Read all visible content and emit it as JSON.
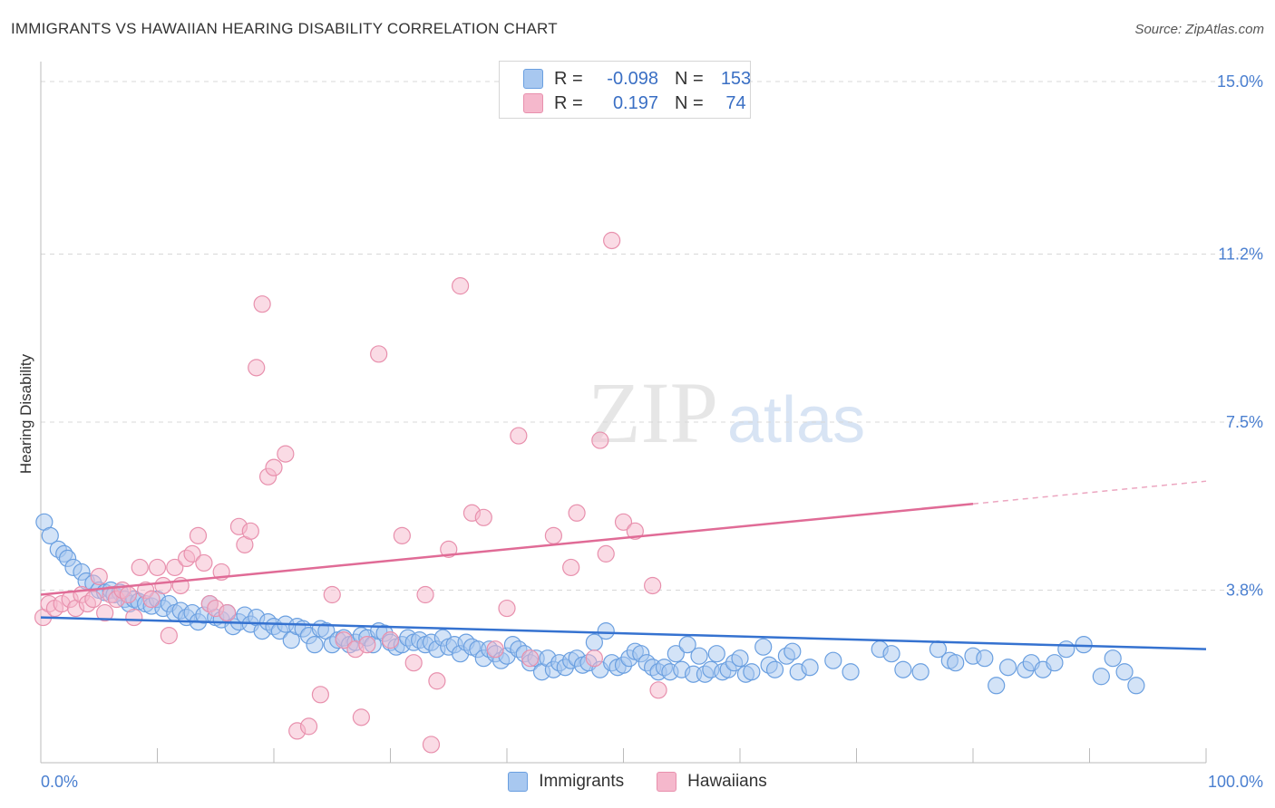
{
  "title": "IMMIGRANTS VS HAWAIIAN HEARING DISABILITY CORRELATION CHART",
  "source": "Source: ZipAtlas.com",
  "watermark": {
    "zip": "ZIP",
    "atlas": "atlas"
  },
  "colors": {
    "blue_fill": "#a8c8f0",
    "blue_stroke": "#6a9fe0",
    "blue_line": "#3572d0",
    "pink_fill": "#f5b8cc",
    "pink_stroke": "#e890ad",
    "pink_line": "#e06b96",
    "tick_text": "#4a7fd0",
    "grid": "#d8d8d8"
  },
  "legend": {
    "rows": [
      {
        "r_label": "R =",
        "r_value": "-0.098",
        "n_label": "N =",
        "n_value": "153",
        "color": "#a8c8f0",
        "border": "#6a9fe0"
      },
      {
        "r_label": "R =",
        "r_value": "0.197",
        "n_label": "N =",
        "n_value": "74",
        "color": "#f5b8cc",
        "border": "#e890ad"
      }
    ]
  },
  "bottom_legend": [
    "Immigrants",
    "Hawaiians"
  ],
  "chart_data": {
    "type": "scatter",
    "title": "IMMIGRANTS VS HAWAIIAN HEARING DISABILITY CORRELATION CHART",
    "xlabel": "",
    "ylabel": "Hearing Disability",
    "xlim": [
      0,
      100
    ],
    "ylim": [
      0,
      15.3
    ],
    "x_tick_labels": [
      "0.0%",
      "100.0%"
    ],
    "y_ticks": [
      3.8,
      7.5,
      11.2,
      15.0
    ],
    "y_tick_labels": [
      "3.8%",
      "7.5%",
      "11.2%",
      "15.0%"
    ],
    "grid": "horizontal dashed",
    "legend_position": "top-center",
    "series": [
      {
        "name": "Immigrants",
        "trend": {
          "x": [
            0,
            100
          ],
          "y": [
            3.2,
            2.5
          ]
        },
        "points": [
          [
            0.3,
            5.3
          ],
          [
            0.8,
            5.0
          ],
          [
            1.5,
            4.7
          ],
          [
            2.0,
            4.6
          ],
          [
            2.3,
            4.5
          ],
          [
            2.8,
            4.3
          ],
          [
            3.5,
            4.2
          ],
          [
            3.9,
            4.0
          ],
          [
            4.5,
            3.95
          ],
          [
            5.0,
            3.8
          ],
          [
            5.5,
            3.75
          ],
          [
            6.0,
            3.8
          ],
          [
            6.3,
            3.7
          ],
          [
            6.8,
            3.75
          ],
          [
            7.2,
            3.6
          ],
          [
            7.6,
            3.5
          ],
          [
            8.0,
            3.6
          ],
          [
            8.4,
            3.55
          ],
          [
            9.0,
            3.5
          ],
          [
            9.5,
            3.45
          ],
          [
            10.0,
            3.6
          ],
          [
            10.5,
            3.4
          ],
          [
            11.0,
            3.5
          ],
          [
            11.5,
            3.3
          ],
          [
            12.0,
            3.35
          ],
          [
            12.5,
            3.2
          ],
          [
            13.0,
            3.3
          ],
          [
            13.5,
            3.1
          ],
          [
            14.0,
            3.25
          ],
          [
            14.5,
            3.5
          ],
          [
            15.0,
            3.2
          ],
          [
            15.5,
            3.15
          ],
          [
            16.0,
            3.3
          ],
          [
            16.5,
            3.0
          ],
          [
            17.0,
            3.1
          ],
          [
            17.5,
            3.25
          ],
          [
            18.0,
            3.05
          ],
          [
            18.5,
            3.2
          ],
          [
            19.0,
            2.9
          ],
          [
            19.5,
            3.1
          ],
          [
            20.0,
            3.0
          ],
          [
            20.5,
            2.9
          ],
          [
            21.0,
            3.05
          ],
          [
            21.5,
            2.7
          ],
          [
            22.0,
            3.0
          ],
          [
            22.5,
            2.95
          ],
          [
            23.0,
            2.8
          ],
          [
            23.5,
            2.6
          ],
          [
            24.0,
            2.95
          ],
          [
            24.5,
            2.9
          ],
          [
            25.0,
            2.6
          ],
          [
            25.5,
            2.7
          ],
          [
            26.0,
            2.75
          ],
          [
            26.5,
            2.6
          ],
          [
            27.0,
            2.65
          ],
          [
            27.5,
            2.8
          ],
          [
            28.0,
            2.75
          ],
          [
            28.5,
            2.6
          ],
          [
            29.0,
            2.9
          ],
          [
            29.5,
            2.85
          ],
          [
            30.0,
            2.65
          ],
          [
            30.5,
            2.55
          ],
          [
            31.0,
            2.6
          ],
          [
            31.5,
            2.75
          ],
          [
            32.0,
            2.65
          ],
          [
            32.5,
            2.7
          ],
          [
            33.0,
            2.6
          ],
          [
            33.5,
            2.65
          ],
          [
            34.0,
            2.5
          ],
          [
            34.5,
            2.75
          ],
          [
            35.0,
            2.55
          ],
          [
            35.5,
            2.6
          ],
          [
            36.0,
            2.4
          ],
          [
            36.5,
            2.65
          ],
          [
            37.0,
            2.55
          ],
          [
            37.5,
            2.5
          ],
          [
            38.0,
            2.3
          ],
          [
            38.5,
            2.5
          ],
          [
            39.0,
            2.4
          ],
          [
            39.5,
            2.25
          ],
          [
            40.0,
            2.35
          ],
          [
            40.5,
            2.6
          ],
          [
            41.0,
            2.5
          ],
          [
            41.5,
            2.4
          ],
          [
            42.0,
            2.2
          ],
          [
            42.5,
            2.3
          ],
          [
            43.0,
            2.0
          ],
          [
            43.5,
            2.3
          ],
          [
            44.0,
            2.05
          ],
          [
            44.5,
            2.2
          ],
          [
            45.0,
            2.1
          ],
          [
            45.5,
            2.25
          ],
          [
            46.0,
            2.3
          ],
          [
            46.5,
            2.15
          ],
          [
            47.0,
            2.2
          ],
          [
            47.5,
            2.65
          ],
          [
            48.0,
            2.05
          ],
          [
            48.5,
            2.9
          ],
          [
            49.0,
            2.2
          ],
          [
            49.5,
            2.1
          ],
          [
            50.0,
            2.15
          ],
          [
            50.5,
            2.3
          ],
          [
            51.0,
            2.45
          ],
          [
            51.5,
            2.4
          ],
          [
            52.0,
            2.2
          ],
          [
            52.5,
            2.1
          ],
          [
            53.0,
            2.0
          ],
          [
            53.5,
            2.1
          ],
          [
            54.0,
            2.0
          ],
          [
            54.5,
            2.4
          ],
          [
            55.0,
            2.05
          ],
          [
            55.5,
            2.6
          ],
          [
            56.0,
            1.95
          ],
          [
            56.5,
            2.35
          ],
          [
            57.0,
            1.95
          ],
          [
            57.5,
            2.05
          ],
          [
            58.0,
            2.4
          ],
          [
            58.5,
            2.0
          ],
          [
            59.0,
            2.05
          ],
          [
            59.5,
            2.2
          ],
          [
            60.0,
            2.3
          ],
          [
            60.5,
            1.95
          ],
          [
            61.0,
            2.0
          ],
          [
            62.0,
            2.55
          ],
          [
            62.5,
            2.15
          ],
          [
            63.0,
            2.05
          ],
          [
            64.0,
            2.35
          ],
          [
            64.5,
            2.45
          ],
          [
            65.0,
            2.0
          ],
          [
            66.0,
            2.1
          ],
          [
            68.0,
            2.25
          ],
          [
            69.5,
            2.0
          ],
          [
            72.0,
            2.5
          ],
          [
            73.0,
            2.4
          ],
          [
            74.0,
            2.05
          ],
          [
            75.5,
            2.0
          ],
          [
            77.0,
            2.5
          ],
          [
            78.0,
            2.25
          ],
          [
            78.5,
            2.2
          ],
          [
            80.0,
            2.35
          ],
          [
            81.0,
            2.3
          ],
          [
            82.0,
            1.7
          ],
          [
            83.0,
            2.1
          ],
          [
            84.5,
            2.05
          ],
          [
            85.0,
            2.2
          ],
          [
            86.0,
            2.05
          ],
          [
            87.0,
            2.2
          ],
          [
            88.0,
            2.5
          ],
          [
            89.5,
            2.6
          ],
          [
            91.0,
            1.9
          ],
          [
            92.0,
            2.3
          ],
          [
            93.0,
            2.0
          ],
          [
            94.0,
            1.7
          ]
        ]
      },
      {
        "name": "Hawaiians",
        "trend": {
          "x": [
            0,
            80
          ],
          "y": [
            3.7,
            5.7
          ]
        },
        "trend_dashed": {
          "x": [
            80,
            100
          ],
          "y": [
            5.7,
            6.2
          ]
        },
        "points": [
          [
            0.2,
            3.2
          ],
          [
            0.7,
            3.5
          ],
          [
            1.2,
            3.4
          ],
          [
            1.8,
            3.5
          ],
          [
            2.5,
            3.6
          ],
          [
            3.0,
            3.4
          ],
          [
            3.5,
            3.7
          ],
          [
            4.0,
            3.5
          ],
          [
            4.5,
            3.6
          ],
          [
            5.0,
            4.1
          ],
          [
            5.5,
            3.3
          ],
          [
            6.0,
            3.7
          ],
          [
            6.5,
            3.6
          ],
          [
            7.0,
            3.8
          ],
          [
            7.5,
            3.7
          ],
          [
            8.0,
            3.2
          ],
          [
            8.5,
            4.3
          ],
          [
            9.0,
            3.8
          ],
          [
            9.5,
            3.6
          ],
          [
            10.0,
            4.3
          ],
          [
            10.5,
            3.9
          ],
          [
            11.0,
            2.8
          ],
          [
            11.5,
            4.3
          ],
          [
            12.0,
            3.9
          ],
          [
            12.5,
            4.5
          ],
          [
            13.0,
            4.6
          ],
          [
            13.5,
            5.0
          ],
          [
            14.0,
            4.4
          ],
          [
            14.5,
            3.5
          ],
          [
            15.0,
            3.4
          ],
          [
            15.5,
            4.2
          ],
          [
            16.0,
            3.3
          ],
          [
            17.0,
            5.2
          ],
          [
            17.5,
            4.8
          ],
          [
            18.0,
            5.1
          ],
          [
            18.5,
            8.7
          ],
          [
            19.0,
            10.1
          ],
          [
            19.5,
            6.3
          ],
          [
            20.0,
            6.5
          ],
          [
            21.0,
            6.8
          ],
          [
            22.0,
            0.7
          ],
          [
            23.0,
            0.8
          ],
          [
            24.0,
            1.5
          ],
          [
            25.0,
            3.7
          ],
          [
            26.0,
            2.7
          ],
          [
            27.0,
            2.5
          ],
          [
            27.5,
            1.0
          ],
          [
            28.0,
            2.6
          ],
          [
            29.0,
            9.0
          ],
          [
            30.0,
            2.7
          ],
          [
            31.0,
            5.0
          ],
          [
            32.0,
            2.2
          ],
          [
            33.0,
            3.7
          ],
          [
            33.5,
            0.4
          ],
          [
            34.0,
            1.8
          ],
          [
            35.0,
            4.7
          ],
          [
            36.0,
            10.5
          ],
          [
            37.0,
            5.5
          ],
          [
            38.0,
            5.4
          ],
          [
            39.0,
            2.5
          ],
          [
            40.0,
            3.4
          ],
          [
            41.0,
            7.2
          ],
          [
            42.0,
            2.3
          ],
          [
            44.0,
            5.0
          ],
          [
            45.5,
            4.3
          ],
          [
            46.0,
            5.5
          ],
          [
            47.5,
            2.3
          ],
          [
            48.0,
            7.1
          ],
          [
            48.5,
            4.6
          ],
          [
            49.0,
            11.5
          ],
          [
            50.0,
            5.3
          ],
          [
            51.0,
            5.1
          ],
          [
            52.5,
            3.9
          ],
          [
            53.0,
            1.6
          ]
        ]
      }
    ]
  }
}
